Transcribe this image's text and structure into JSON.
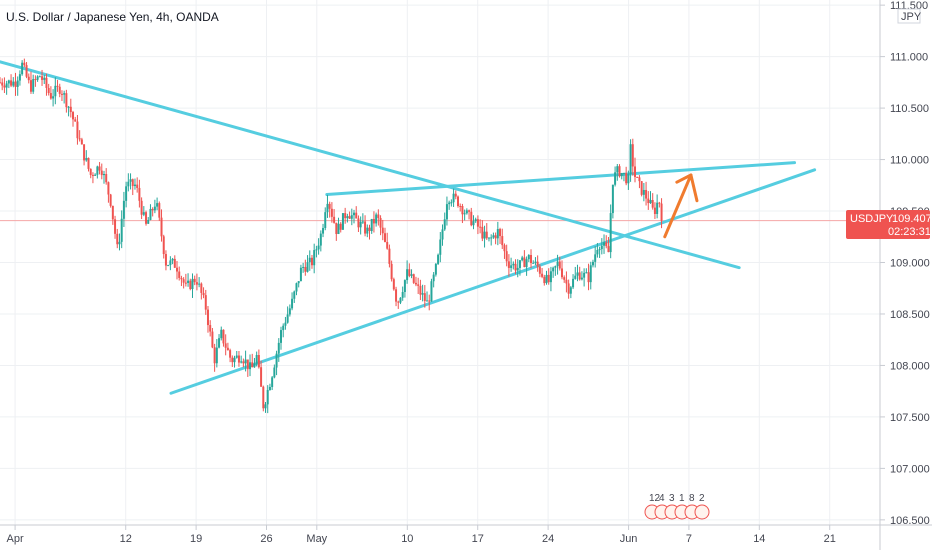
{
  "chart_data": {
    "type": "candlestick",
    "title": "U.S. Dollar / Japanese Yen, 4h, OANDA",
    "currency_label": "JPY",
    "symbol": "USDJPY",
    "last_price": "109.407",
    "countdown": "02:23:31",
    "y_ticks": [
      "111.500",
      "111.000",
      "110.500",
      "110.000",
      "109.500",
      "109.000",
      "108.500",
      "108.000",
      "107.500",
      "107.000",
      "106.500"
    ],
    "ylim": [
      106.45,
      111.55
    ],
    "x_ticks": [
      {
        "label": "Apr",
        "day": 0
      },
      {
        "label": "12",
        "day": 11
      },
      {
        "label": "19",
        "day": 18
      },
      {
        "label": "26",
        "day": 25
      },
      {
        "label": "May",
        "day": 30
      },
      {
        "label": "10",
        "day": 39
      },
      {
        "label": "17",
        "day": 46
      },
      {
        "label": "24",
        "day": 53
      },
      {
        "label": "Jun",
        "day": 61
      },
      {
        "label": "7",
        "day": 67
      },
      {
        "label": "14",
        "day": 74
      },
      {
        "label": "21",
        "day": 81
      }
    ],
    "xlim": [
      -1.5,
      86
    ],
    "series_path": [
      [
        0,
        110.75
      ],
      [
        0.7,
        110.92
      ],
      [
        1.5,
        110.7
      ],
      [
        2.5,
        110.82
      ],
      [
        3.5,
        110.62
      ],
      [
        4.5,
        110.7
      ],
      [
        5.5,
        110.48
      ],
      [
        6.5,
        110.15
      ],
      [
        7.5,
        109.85
      ],
      [
        8.5,
        109.95
      ],
      [
        9.5,
        109.6
      ],
      [
        10.2,
        109.1
      ],
      [
        11,
        109.75
      ],
      [
        12,
        109.75
      ],
      [
        13,
        109.35
      ],
      [
        14,
        109.6
      ],
      [
        15,
        109.0
      ],
      [
        16,
        108.98
      ],
      [
        17,
        108.75
      ],
      [
        18,
        108.85
      ],
      [
        19,
        108.55
      ],
      [
        19.8,
        108.05
      ],
      [
        20.5,
        108.3
      ],
      [
        21.5,
        108.05
      ],
      [
        22.5,
        108.1
      ],
      [
        23.5,
        107.95
      ],
      [
        24,
        108.1
      ],
      [
        24.7,
        107.6
      ],
      [
        25.5,
        107.9
      ],
      [
        26.5,
        108.35
      ],
      [
        27.5,
        108.6
      ],
      [
        28.5,
        108.95
      ],
      [
        29.5,
        109.0
      ],
      [
        30.5,
        109.3
      ],
      [
        31,
        109.65
      ],
      [
        32,
        109.3
      ],
      [
        33,
        109.5
      ],
      [
        34,
        109.4
      ],
      [
        35,
        109.3
      ],
      [
        36,
        109.45
      ],
      [
        37,
        109.1
      ],
      [
        38,
        108.6
      ],
      [
        39,
        108.9
      ],
      [
        40,
        108.75
      ],
      [
        41,
        108.6
      ],
      [
        42,
        109.0
      ],
      [
        43,
        109.65
      ],
      [
        44,
        109.6
      ],
      [
        45,
        109.45
      ],
      [
        46,
        109.35
      ],
      [
        47,
        109.2
      ],
      [
        48,
        109.3
      ],
      [
        49,
        109.0
      ],
      [
        50,
        108.95
      ],
      [
        51,
        109.05
      ],
      [
        52,
        108.95
      ],
      [
        53,
        108.8
      ],
      [
        54,
        109.0
      ],
      [
        55,
        108.75
      ],
      [
        56,
        108.9
      ],
      [
        57,
        108.85
      ],
      [
        58,
        109.2
      ],
      [
        59,
        109.1
      ],
      [
        59.4,
        109.8
      ],
      [
        60,
        109.9
      ],
      [
        61,
        109.8
      ],
      [
        61.2,
        110.1
      ],
      [
        61.6,
        109.85
      ],
      [
        62,
        109.75
      ],
      [
        63,
        109.6
      ],
      [
        63.5,
        109.48
      ],
      [
        64,
        109.62
      ],
      [
        64.4,
        109.41
      ]
    ],
    "trendlines": [
      {
        "name": "",
        "from": [
          -1.5,
          110.95
        ],
        "to": [
          72,
          108.95
        ]
      },
      {
        "name": "",
        "from": [
          15.5,
          107.73
        ],
        "to": [
          79.5,
          109.9
        ]
      },
      {
        "name": "",
        "from": [
          31,
          109.66
        ],
        "to": [
          77.5,
          109.97
        ]
      }
    ],
    "arrow": {
      "from": [
        64.6,
        109.25
      ],
      "to": [
        67.2,
        109.85
      ],
      "head": [
        [
          65.8,
          109.78
        ],
        [
          67.2,
          109.85
        ],
        [
          67.8,
          109.6
        ]
      ]
    },
    "event_markers": [
      "12",
      "4",
      "3",
      "1",
      "8",
      "2"
    ],
    "colors": {
      "up": "#26a69a",
      "down": "#ef5350",
      "trend": "#55cde0",
      "arrow": "#f07b2e",
      "badge": "#ef5350"
    }
  }
}
